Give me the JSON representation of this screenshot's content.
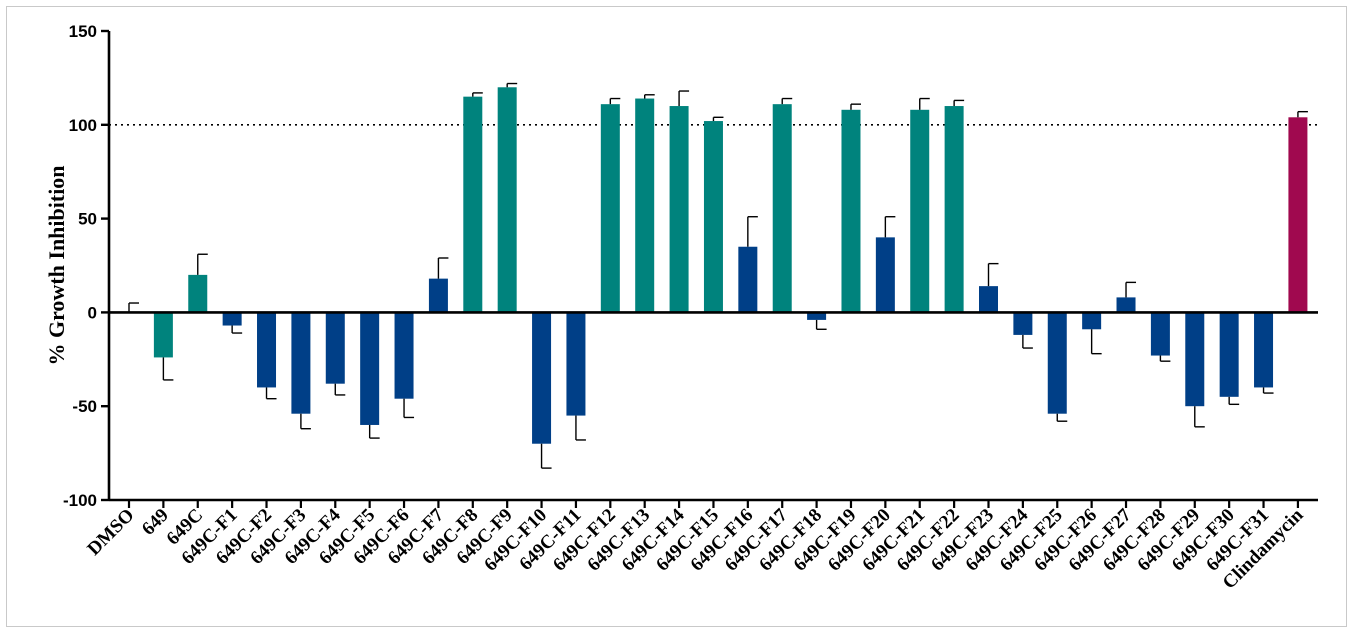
{
  "chart_data": {
    "type": "bar",
    "ylabel": "% Growth Inhibition",
    "ylim": [
      -100,
      150
    ],
    "yticks": [
      -100,
      -50,
      0,
      50,
      100,
      150
    ],
    "reference_line": 100,
    "categories": [
      "DMSO",
      "649",
      "649C",
      "649C-F1",
      "649C-F2",
      "649C-F3",
      "649C-F4",
      "649C-F5",
      "649C-F6",
      "649C-F7",
      "649C-F8",
      "649C-F9",
      "649C-F10",
      "649C-F11",
      "649C-F12",
      "649C-F13",
      "649C-F14",
      "649C-F15",
      "649C-F16",
      "649C-F17",
      "649C-F18",
      "649C-F19",
      "649C-F20",
      "649C-F21",
      "649C-F22",
      "649C-F23",
      "649C-F24",
      "649C-F25",
      "649C-F26",
      "649C-F27",
      "649C-F28",
      "649C-F29",
      "649C-F30",
      "649C-F31",
      "Clindamycin"
    ],
    "values": [
      0,
      -24,
      20,
      -7,
      -40,
      -54,
      -38,
      -60,
      -46,
      18,
      115,
      120,
      -70,
      -55,
      111,
      114,
      110,
      102,
      35,
      111,
      -4,
      108,
      40,
      108,
      110,
      14,
      -12,
      -54,
      -9,
      8,
      -23,
      -50,
      -45,
      -40,
      104
    ],
    "errors": [
      5,
      12,
      11,
      4,
      6,
      8,
      6,
      7,
      10,
      11,
      2,
      2,
      13,
      13,
      3,
      2,
      8,
      2,
      16,
      3,
      5,
      3,
      11,
      6,
      3,
      12,
      7,
      4,
      13,
      8,
      3,
      11,
      4,
      3,
      3
    ],
    "colors": {
      "active": "#00837d",
      "inactive": "#003f87",
      "control": "#a0094f"
    },
    "bar_color_keys": [
      "inactive",
      "active",
      "active",
      "inactive",
      "inactive",
      "inactive",
      "inactive",
      "inactive",
      "inactive",
      "inactive",
      "active",
      "active",
      "inactive",
      "inactive",
      "active",
      "active",
      "active",
      "active",
      "inactive",
      "active",
      "inactive",
      "active",
      "inactive",
      "active",
      "active",
      "inactive",
      "inactive",
      "inactive",
      "inactive",
      "inactive",
      "inactive",
      "inactive",
      "inactive",
      "inactive",
      "control"
    ]
  }
}
